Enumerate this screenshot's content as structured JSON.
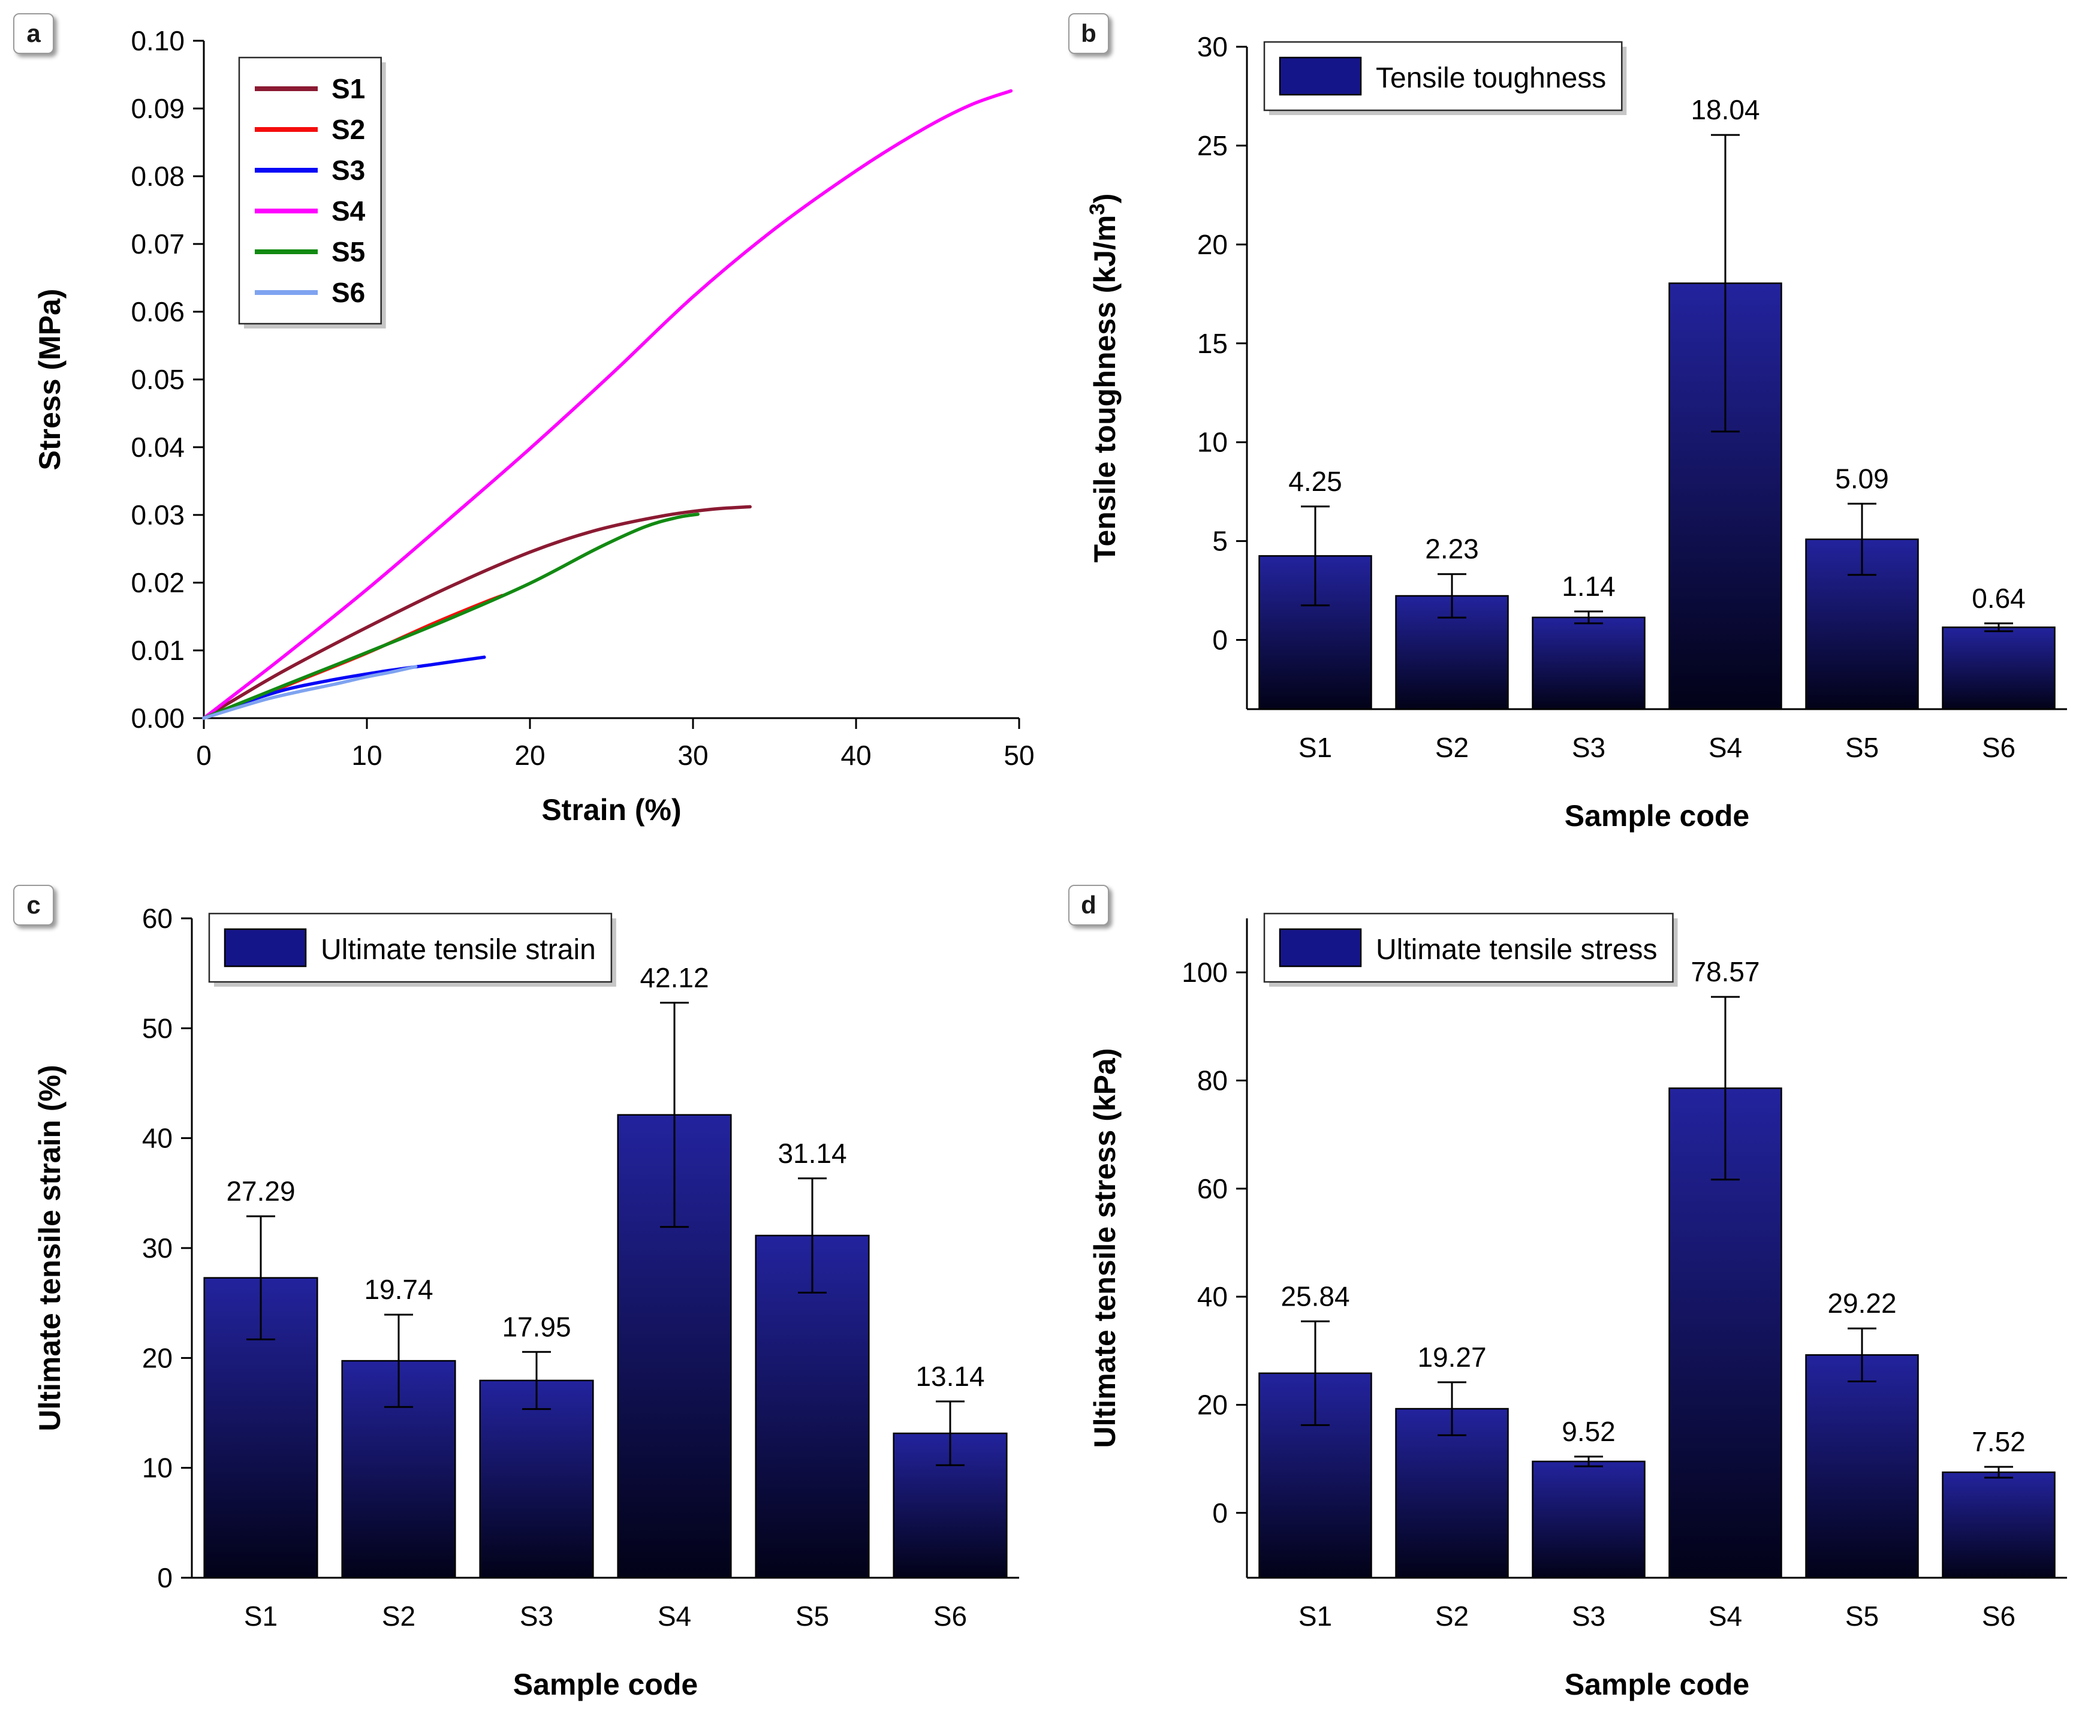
{
  "panels": [
    {
      "badge": "a"
    },
    {
      "badge": "b"
    },
    {
      "badge": "c"
    },
    {
      "badge": "d"
    }
  ],
  "colors": {
    "axis": "#000000",
    "bar_top": "#23239e",
    "bar_bottom": "#020218",
    "bar_legend_swatch": "#15158a"
  },
  "chart_data": [
    {
      "panel": "a",
      "type": "line",
      "xlabel": "Strain (%)",
      "ylabel": "Stress (MPa)",
      "xlim": [
        0,
        50
      ],
      "ylim": [
        0,
        0.1
      ],
      "xticks": [
        0,
        10,
        20,
        30,
        40,
        50
      ],
      "yticks": [
        0,
        0.01,
        0.02,
        0.03,
        0.04,
        0.05,
        0.06,
        0.07,
        0.08,
        0.09,
        0.1
      ],
      "xtick_decimals": 0,
      "ytick_decimals": 2,
      "legend_position": "top-left",
      "series": [
        {
          "name": "S1",
          "color": "#8b1a32",
          "points": [
            [
              0,
              0
            ],
            [
              2,
              0.0029
            ],
            [
              5,
              0.0071
            ],
            [
              10,
              0.0134
            ],
            [
              15,
              0.0193
            ],
            [
              20,
              0.0245
            ],
            [
              24,
              0.0277
            ],
            [
              28,
              0.0298
            ],
            [
              31,
              0.0308
            ],
            [
              33.5,
              0.0312
            ]
          ]
        },
        {
          "name": "S2",
          "color": "#f50d0d",
          "points": [
            [
              0,
              0
            ],
            [
              3,
              0.0028
            ],
            [
              6,
              0.0057
            ],
            [
              10,
              0.0096
            ],
            [
              14,
              0.0139
            ],
            [
              17,
              0.0169
            ],
            [
              18.3,
              0.0181
            ]
          ]
        },
        {
          "name": "S3",
          "color": "#0808f7",
          "points": [
            [
              0,
              0
            ],
            [
              2,
              0.0019
            ],
            [
              5,
              0.0042
            ],
            [
              8,
              0.0057
            ],
            [
              11,
              0.0069
            ],
            [
              14,
              0.0079
            ],
            [
              16,
              0.0086
            ],
            [
              17.2,
              0.009
            ]
          ]
        },
        {
          "name": "S4",
          "color": "#ff00ff",
          "points": [
            [
              0,
              0
            ],
            [
              2,
              0.0037
            ],
            [
              5,
              0.0093
            ],
            [
              10,
              0.019
            ],
            [
              15,
              0.0293
            ],
            [
              20,
              0.0398
            ],
            [
              25,
              0.0508
            ],
            [
              30,
              0.0622
            ],
            [
              35,
              0.0722
            ],
            [
              40,
              0.0808
            ],
            [
              44,
              0.0868
            ],
            [
              47,
              0.0905
            ],
            [
              49.5,
              0.0926
            ]
          ]
        },
        {
          "name": "S5",
          "color": "#128a12",
          "points": [
            [
              0,
              0
            ],
            [
              2,
              0.002
            ],
            [
              5,
              0.0049
            ],
            [
              10,
              0.0097
            ],
            [
              15,
              0.0146
            ],
            [
              20,
              0.0199
            ],
            [
              24,
              0.0249
            ],
            [
              27,
              0.0282
            ],
            [
              29,
              0.0296
            ],
            [
              30.3,
              0.0301
            ]
          ]
        },
        {
          "name": "S6",
          "color": "#7fa3f0",
          "points": [
            [
              0,
              0
            ],
            [
              2,
              0.0015
            ],
            [
              4,
              0.0029
            ],
            [
              6,
              0.004
            ],
            [
              8,
              0.005
            ],
            [
              10,
              0.0061
            ],
            [
              11.5,
              0.0068
            ],
            [
              13,
              0.0076
            ]
          ]
        }
      ]
    },
    {
      "panel": "b",
      "type": "bar",
      "legend_label": "Tensile toughness",
      "xlabel": "Sample code",
      "ylabel": "Tensile toughness (kJ/m^3)",
      "categories": [
        "S1",
        "S2",
        "S3",
        "S4",
        "S5",
        "S6"
      ],
      "values": [
        4.25,
        2.23,
        1.14,
        18.04,
        5.09,
        0.64
      ],
      "errors": [
        2.5,
        1.1,
        0.3,
        7.5,
        1.8,
        0.2
      ],
      "ylim": [
        -3.5,
        30
      ],
      "yticks": [
        0,
        5,
        10,
        15,
        20,
        25,
        30
      ],
      "ytick_decimals": 0
    },
    {
      "panel": "c",
      "type": "bar",
      "legend_label": "Ultimate tensile strain",
      "xlabel": "Sample code",
      "ylabel": "Ultimate tensile strain (%)",
      "categories": [
        "S1",
        "S2",
        "S3",
        "S4",
        "S5",
        "S6"
      ],
      "values": [
        27.29,
        19.74,
        17.95,
        42.12,
        31.14,
        13.14
      ],
      "errors": [
        5.6,
        4.2,
        2.6,
        10.2,
        5.2,
        2.9
      ],
      "ylim": [
        0,
        60
      ],
      "yticks": [
        0,
        10,
        20,
        30,
        40,
        50,
        60
      ],
      "ytick_decimals": 0
    },
    {
      "panel": "d",
      "type": "bar",
      "legend_label": "Ultimate tensile stress",
      "xlabel": "Sample code",
      "ylabel": "Ultimate tensile stress (kPa)",
      "categories": [
        "S1",
        "S2",
        "S3",
        "S4",
        "S5",
        "S6"
      ],
      "values": [
        25.84,
        19.27,
        9.52,
        78.57,
        29.22,
        7.52
      ],
      "errors": [
        9.6,
        4.9,
        0.9,
        16.9,
        4.9,
        1.0
      ],
      "ylim": [
        -12,
        110
      ],
      "yticks": [
        0,
        20,
        40,
        60,
        80,
        100
      ],
      "ytick_decimals": 0
    }
  ]
}
